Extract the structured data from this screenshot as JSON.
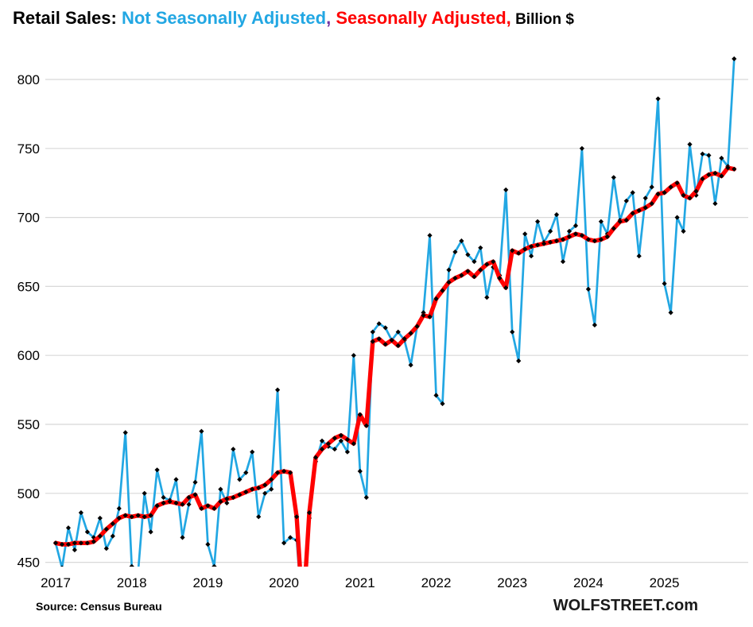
{
  "title": {
    "prefix": "Retail Sales: ",
    "nsa_label": "Not Seasonally Adjusted",
    "separator": ", ",
    "sa_label": "Seasonally Adjusted,",
    "units": " Billion $"
  },
  "footer": {
    "source": "Source: Census Bureau",
    "brand": "WOLFSTREET.com"
  },
  "colors": {
    "nsa_blue": "#22A7E3",
    "sa_red": "#FF0000",
    "comma_purple": "#7030A0",
    "grid": "#D8D8D8",
    "marker": "#000000",
    "axis_text": "#000000"
  },
  "chart_data": {
    "type": "line",
    "title": "Retail Sales: Not Seasonally Adjusted, Seasonally Adjusted, Billion $",
    "xlabel": "",
    "ylabel": "Billion $",
    "x_start": "2017-01",
    "x_end": "2025-12",
    "freq": "monthly",
    "year_ticks": [
      "2017",
      "2018",
      "2019",
      "2020",
      "2021",
      "2022",
      "2023",
      "2024",
      "2025"
    ],
    "y_ticks": [
      450,
      500,
      550,
      600,
      650,
      700,
      750,
      800
    ],
    "ylim": [
      450,
      800
    ],
    "grid": "horizontal-only",
    "legend_position": "in-title",
    "marker_shape": "black-diamond",
    "series": [
      {
        "name": "Not Seasonally Adjusted",
        "color": "#22A7E3",
        "line_width": 2.7,
        "values": [
          464,
          446,
          475,
          459,
          486,
          472,
          468,
          482,
          460,
          469,
          489,
          544,
          447,
          443,
          500,
          472,
          517,
          497,
          495,
          510,
          468,
          492,
          508,
          545,
          463,
          447,
          503,
          493,
          532,
          510,
          515,
          530,
          483,
          500,
          503,
          575,
          464,
          468,
          466,
          406,
          482,
          523,
          538,
          534,
          532,
          538,
          530,
          600,
          516,
          497,
          617,
          623,
          620,
          611,
          617,
          611,
          593,
          621,
          631,
          687,
          571,
          565,
          662,
          675,
          683,
          673,
          668,
          678,
          642,
          664,
          658,
          720,
          617,
          596,
          688,
          672,
          697,
          682,
          690,
          702,
          668,
          690,
          694,
          750,
          648,
          622,
          697,
          688,
          729,
          698,
          712,
          718,
          672,
          714,
          722,
          786,
          652,
          631,
          700,
          690,
          753,
          716,
          746,
          745,
          710,
          743,
          737,
          815
        ]
      },
      {
        "name": "Seasonally Adjusted",
        "color": "#FF0000",
        "line_width": 5.4,
        "values": [
          464,
          463,
          463,
          464,
          464,
          464,
          465,
          469,
          474,
          478,
          482,
          484,
          483,
          484,
          483,
          484,
          491,
          493,
          494,
          493,
          492,
          497,
          499,
          489,
          491,
          489,
          494,
          496,
          497,
          499,
          501,
          503,
          504,
          506,
          510,
          515,
          516,
          515,
          483,
          412,
          486,
          526,
          532,
          536,
          540,
          542,
          539,
          536,
          557,
          549,
          610,
          612,
          608,
          611,
          607,
          612,
          616,
          621,
          629,
          628,
          641,
          647,
          653,
          656,
          658,
          661,
          657,
          662,
          666,
          668,
          656,
          649,
          676,
          674,
          677,
          679,
          680,
          681,
          682,
          683,
          684,
          686,
          688,
          687,
          684,
          683,
          684,
          686,
          692,
          697,
          698,
          703,
          705,
          707,
          710,
          717,
          718,
          722,
          725,
          716,
          714,
          719,
          728,
          731,
          732,
          730,
          736,
          735
        ]
      }
    ]
  }
}
